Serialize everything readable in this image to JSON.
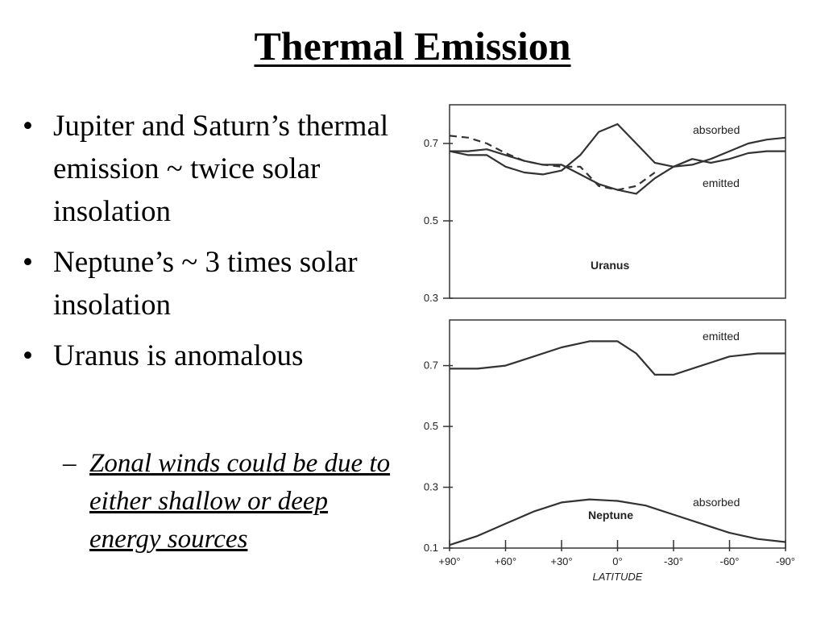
{
  "slide": {
    "title": "Thermal Emission",
    "bullets": [
      "Jupiter and Saturn’s thermal emission ~ twice solar insolation",
      "Neptune’s ~ 3 times solar insolation",
      "Uranus is anomalous"
    ],
    "bullet_symbol": "•",
    "sub_dash": "–",
    "sub_bullet": "Zonal winds could be due to either shallow or deep energy sources"
  },
  "chart_data": [
    {
      "type": "line",
      "planet_label": "Uranus",
      "ylim": [
        0.3,
        0.8
      ],
      "ytick_labels": [
        "0.7",
        "0.5",
        "0.3"
      ],
      "ytick_values": [
        0.7,
        0.5,
        0.3
      ],
      "xlim": [
        90,
        -90
      ],
      "series": [
        {
          "name": "absorbed",
          "style": "solid",
          "x": [
            90,
            80,
            70,
            60,
            50,
            40,
            30,
            20,
            10,
            0,
            -10,
            -20,
            -30,
            -40,
            -50,
            -60,
            -70,
            -80,
            -90
          ],
          "y": [
            0.68,
            0.67,
            0.67,
            0.64,
            0.625,
            0.62,
            0.63,
            0.67,
            0.73,
            0.75,
            0.7,
            0.65,
            0.64,
            0.645,
            0.66,
            0.68,
            0.7,
            0.71,
            0.715
          ]
        },
        {
          "name": "emitted",
          "style": "solid",
          "x": [
            90,
            80,
            70,
            60,
            50,
            40,
            30,
            20,
            10,
            0,
            -10,
            -20,
            -30,
            -40,
            -50,
            -60,
            -70,
            -80,
            -90
          ],
          "y": [
            0.68,
            0.68,
            0.685,
            0.67,
            0.655,
            0.645,
            0.645,
            0.62,
            0.595,
            0.58,
            0.57,
            0.61,
            0.64,
            0.66,
            0.65,
            0.66,
            0.675,
            0.68,
            0.68
          ]
        },
        {
          "name": "",
          "style": "dashed",
          "x": [
            90,
            80,
            70,
            60,
            50,
            40,
            30,
            20,
            10,
            0,
            -10,
            -20
          ],
          "y": [
            0.72,
            0.715,
            0.7,
            0.675,
            0.655,
            0.645,
            0.64,
            0.64,
            0.59,
            0.58,
            0.59,
            0.625
          ]
        }
      ]
    },
    {
      "type": "line",
      "planet_label": "Neptune",
      "ylim": [
        0.1,
        0.85
      ],
      "ytick_labels": [
        "0.7",
        "0.5",
        "0.3",
        "0.1"
      ],
      "ytick_values": [
        0.7,
        0.5,
        0.3,
        0.1
      ],
      "xlim": [
        90,
        -90
      ],
      "xtick_labels": [
        "+90°",
        "+60°",
        "+30°",
        "0°",
        "-30°",
        "-60°",
        "-90°"
      ],
      "xtick_values": [
        90,
        60,
        30,
        0,
        -30,
        -60,
        -90
      ],
      "xlabel": "LATITUDE",
      "series": [
        {
          "name": "emitted",
          "style": "solid",
          "x": [
            90,
            75,
            60,
            45,
            30,
            15,
            0,
            -10,
            -20,
            -30,
            -45,
            -60,
            -75,
            -90
          ],
          "y": [
            0.69,
            0.69,
            0.7,
            0.73,
            0.76,
            0.78,
            0.78,
            0.74,
            0.67,
            0.67,
            0.7,
            0.73,
            0.74,
            0.74
          ]
        },
        {
          "name": "absorbed",
          "style": "solid",
          "x": [
            90,
            75,
            60,
            45,
            30,
            15,
            0,
            -15,
            -30,
            -45,
            -60,
            -75,
            -90
          ],
          "y": [
            0.11,
            0.14,
            0.18,
            0.22,
            0.25,
            0.26,
            0.255,
            0.24,
            0.21,
            0.18,
            0.15,
            0.13,
            0.12
          ]
        }
      ]
    }
  ]
}
